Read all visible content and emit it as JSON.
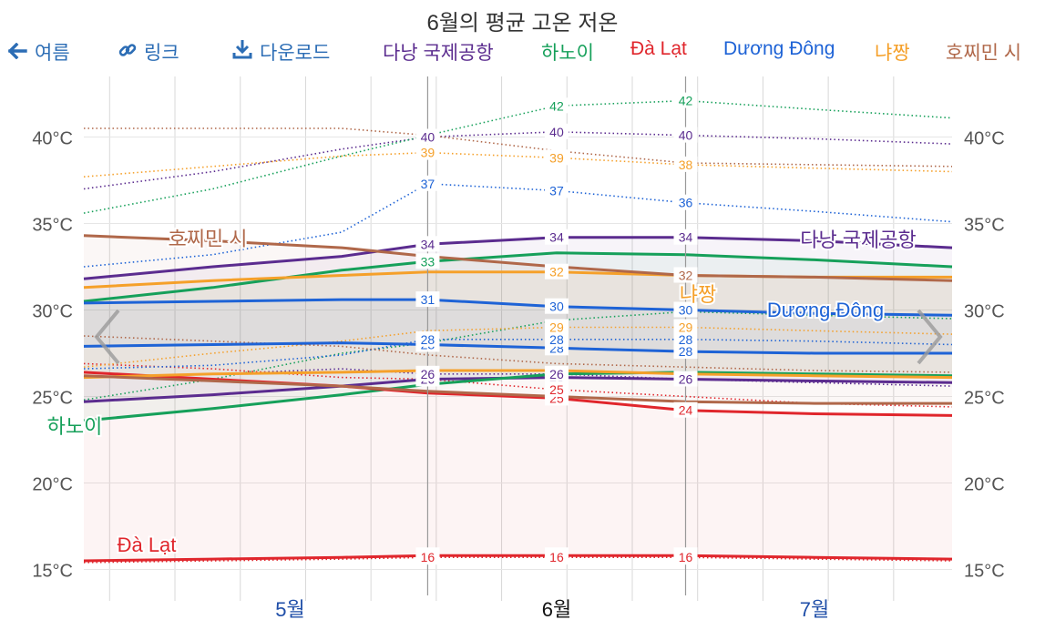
{
  "title": "6월의 평균 고온 저온",
  "toolbar": {
    "back_label": "여름",
    "link_label": "링크",
    "download_label": "다운로드"
  },
  "colors": {
    "danang": "#5b2c8f",
    "hanoi": "#16a05a",
    "dalat": "#e0262c",
    "duongdong": "#1e63d6",
    "nhatrang": "#f5a02a",
    "hcmc": "#b0684a",
    "toolbar": "#2c6db5"
  },
  "nav": {
    "prev_icon": "chevron-left-icon",
    "next_icon": "chevron-right-icon"
  },
  "chart_data": {
    "type": "line",
    "title": "6월의 평균 고온 저온",
    "y_unit": "°C",
    "ylim": [
      13.5,
      43.5
    ],
    "y_ticks": [
      15,
      20,
      25,
      30,
      35,
      40
    ],
    "y_tick_labels": [
      "15°C",
      "20°C",
      "25°C",
      "30°C",
      "35°C",
      "40°C"
    ],
    "x_range": [
      "04-22",
      "07-31"
    ],
    "month_labels": [
      {
        "label": "5월",
        "date": "05-16"
      },
      {
        "label": "6월",
        "date": "06-16"
      },
      {
        "label": "7월",
        "date": "07-16"
      }
    ],
    "current_month": "6월",
    "marker_dates": [
      "06-01",
      "06-16",
      "07-01"
    ],
    "grid": true,
    "legend": "top",
    "series": [
      {
        "name": "다낭 국제공항",
        "color_key": "danang",
        "end_label": "다낭 국제공항",
        "high": [
          [
            0,
            31.8
          ],
          [
            15,
            32.5
          ],
          [
            30,
            33.1
          ],
          [
            40,
            33.8
          ],
          [
            55,
            34.2
          ],
          [
            70,
            34.2
          ],
          [
            85,
            34.0
          ],
          [
            101,
            33.6
          ]
        ],
        "low": [
          [
            0,
            24.7
          ],
          [
            15,
            25.1
          ],
          [
            30,
            25.6
          ],
          [
            40,
            26.0
          ],
          [
            55,
            26.1
          ],
          [
            70,
            26.0
          ],
          [
            85,
            25.9
          ],
          [
            101,
            25.8
          ]
        ],
        "max": [
          [
            0,
            37.0
          ],
          [
            15,
            38.0
          ],
          [
            30,
            39.3
          ],
          [
            40,
            40.0
          ],
          [
            55,
            40.3
          ],
          [
            70,
            40.1
          ],
          [
            85,
            39.9
          ],
          [
            101,
            39.6
          ]
        ],
        "min": [
          [
            0,
            26.1
          ],
          [
            15,
            26.3
          ],
          [
            30,
            26.6
          ],
          [
            40,
            26.3
          ],
          [
            55,
            26.3
          ],
          [
            70,
            26.0
          ],
          [
            85,
            25.8
          ],
          [
            101,
            25.6
          ]
        ],
        "point_labels": [
          [
            "40",
            "34"
          ],
          [
            "26",
            "26"
          ],
          [
            "40",
            "40"
          ],
          [
            "40",
            "26"
          ],
          [
            "55",
            "34"
          ],
          [
            "55",
            "26"
          ],
          [
            "55",
            "40"
          ],
          [
            "70",
            "34"
          ],
          [
            "70",
            "26"
          ],
          [
            "70",
            "40"
          ]
        ]
      },
      {
        "name": "하노이",
        "color_key": "hanoi",
        "start_label": "하노이",
        "high": [
          [
            0,
            30.5
          ],
          [
            15,
            31.3
          ],
          [
            30,
            32.3
          ],
          [
            40,
            32.8
          ],
          [
            55,
            33.3
          ],
          [
            70,
            33.2
          ],
          [
            85,
            32.9
          ],
          [
            101,
            32.5
          ]
        ],
        "low": [
          [
            0,
            23.6
          ],
          [
            15,
            24.3
          ],
          [
            30,
            25.1
          ],
          [
            40,
            25.7
          ],
          [
            55,
            26.3
          ],
          [
            70,
            26.4
          ],
          [
            85,
            26.3
          ],
          [
            101,
            26.2
          ]
        ],
        "max": [
          [
            0,
            35.6
          ],
          [
            15,
            37.0
          ],
          [
            30,
            38.9
          ],
          [
            40,
            40.1
          ],
          [
            55,
            41.8
          ],
          [
            70,
            42.1
          ],
          [
            85,
            41.6
          ],
          [
            101,
            41.1
          ]
        ],
        "min": [
          [
            0,
            24.8
          ],
          [
            15,
            26.0
          ],
          [
            30,
            27.5
          ],
          [
            40,
            28.1
          ],
          [
            55,
            29.4
          ],
          [
            70,
            29.9
          ],
          [
            85,
            29.7
          ],
          [
            101,
            29.5
          ]
        ],
        "point_labels": [
          [
            "40",
            "33"
          ],
          [
            "55",
            "42"
          ],
          [
            "70",
            "42"
          ]
        ]
      },
      {
        "name": "Đà Lạt",
        "color_key": "dalat",
        "start_label": "Đà Lạt",
        "high": [
          [
            0,
            26.4
          ],
          [
            15,
            26.0
          ],
          [
            30,
            25.6
          ],
          [
            40,
            25.2
          ],
          [
            55,
            24.9
          ],
          [
            70,
            24.2
          ],
          [
            85,
            24.0
          ],
          [
            101,
            23.9
          ]
        ],
        "low": [
          [
            0,
            15.5
          ],
          [
            15,
            15.6
          ],
          [
            30,
            15.7
          ],
          [
            40,
            15.8
          ],
          [
            55,
            15.8
          ],
          [
            70,
            15.8
          ],
          [
            85,
            15.7
          ],
          [
            101,
            15.6
          ]
        ],
        "max": [
          [
            0,
            26.9
          ],
          [
            15,
            26.6
          ],
          [
            30,
            26.1
          ],
          [
            40,
            26.0
          ],
          [
            55,
            25.4
          ],
          [
            70,
            25.0
          ],
          [
            85,
            24.6
          ],
          [
            101,
            24.4
          ]
        ],
        "min": [
          [
            0,
            15.4
          ],
          [
            15,
            15.5
          ],
          [
            30,
            15.6
          ],
          [
            40,
            15.7
          ],
          [
            55,
            15.7
          ],
          [
            70,
            15.7
          ],
          [
            85,
            15.6
          ],
          [
            101,
            15.5
          ]
        ],
        "point_labels": [
          [
            "40",
            "16"
          ],
          [
            "55",
            "25"
          ],
          [
            "55",
            "16"
          ],
          [
            "70",
            "24"
          ],
          [
            "70",
            "16"
          ]
        ]
      },
      {
        "name": "Dương Đông",
        "color_key": "duongdong",
        "end_label": "Dương Đông",
        "high": [
          [
            0,
            30.4
          ],
          [
            15,
            30.5
          ],
          [
            30,
            30.6
          ],
          [
            40,
            30.6
          ],
          [
            55,
            30.2
          ],
          [
            70,
            30.0
          ],
          [
            85,
            29.8
          ],
          [
            101,
            29.7
          ]
        ],
        "low": [
          [
            0,
            27.9
          ],
          [
            15,
            28.0
          ],
          [
            30,
            28.1
          ],
          [
            40,
            28.0
          ],
          [
            55,
            27.8
          ],
          [
            70,
            27.6
          ],
          [
            85,
            27.5
          ],
          [
            101,
            27.5
          ]
        ],
        "max": [
          [
            0,
            32.5
          ],
          [
            15,
            33.2
          ],
          [
            30,
            34.5
          ],
          [
            40,
            37.3
          ],
          [
            55,
            36.9
          ],
          [
            70,
            36.2
          ],
          [
            85,
            35.7
          ],
          [
            101,
            35.1
          ]
        ],
        "min": [
          [
            0,
            26.6
          ],
          [
            15,
            26.8
          ],
          [
            30,
            27.4
          ],
          [
            40,
            28.3
          ],
          [
            55,
            28.3
          ],
          [
            70,
            28.3
          ],
          [
            85,
            28.2
          ],
          [
            101,
            28.0
          ]
        ],
        "point_labels": [
          [
            "40",
            "37"
          ],
          [
            "40",
            "31"
          ],
          [
            "40",
            "28"
          ],
          [
            "55",
            "37"
          ],
          [
            "55",
            "30"
          ],
          [
            "55",
            "28"
          ],
          [
            "70",
            "36"
          ],
          [
            "70",
            "30"
          ],
          [
            "70",
            "28"
          ]
        ]
      },
      {
        "name": "냐짱",
        "color_key": "nhatrang",
        "end_label": "냐짱",
        "high": [
          [
            0,
            31.3
          ],
          [
            15,
            31.7
          ],
          [
            30,
            32.0
          ],
          [
            40,
            32.2
          ],
          [
            55,
            32.2
          ],
          [
            70,
            32.0
          ],
          [
            85,
            31.9
          ],
          [
            101,
            31.9
          ]
        ],
        "low": [
          [
            0,
            26.1
          ],
          [
            15,
            26.3
          ],
          [
            30,
            26.4
          ],
          [
            40,
            26.5
          ],
          [
            55,
            26.5
          ],
          [
            70,
            26.3
          ],
          [
            85,
            26.2
          ],
          [
            101,
            26.1
          ]
        ],
        "max": [
          [
            0,
            37.7
          ],
          [
            15,
            38.3
          ],
          [
            30,
            38.9
          ],
          [
            40,
            39.1
          ],
          [
            55,
            38.8
          ],
          [
            70,
            38.4
          ],
          [
            85,
            38.2
          ],
          [
            101,
            38.0
          ]
        ],
        "min": [
          [
            0,
            26.7
          ],
          [
            15,
            27.5
          ],
          [
            30,
            28.2
          ],
          [
            40,
            28.8
          ],
          [
            55,
            29.0
          ],
          [
            70,
            29.0
          ],
          [
            85,
            28.8
          ],
          [
            101,
            28.6
          ]
        ],
        "point_labels": [
          [
            "40",
            "39"
          ],
          [
            "55",
            "39"
          ],
          [
            "55",
            "32"
          ],
          [
            "55",
            "29"
          ],
          [
            "70",
            "38"
          ],
          [
            "70",
            "29"
          ]
        ]
      },
      {
        "name": "호찌민 시",
        "color_key": "hcmc",
        "start_label": "호찌민 시",
        "high": [
          [
            0,
            34.3
          ],
          [
            15,
            34.0
          ],
          [
            30,
            33.6
          ],
          [
            40,
            33.1
          ],
          [
            55,
            32.5
          ],
          [
            70,
            32.0
          ],
          [
            85,
            31.9
          ],
          [
            101,
            31.7
          ]
        ],
        "low": [
          [
            0,
            26.2
          ],
          [
            15,
            25.9
          ],
          [
            30,
            25.6
          ],
          [
            40,
            25.3
          ],
          [
            55,
            25.0
          ],
          [
            70,
            24.7
          ],
          [
            85,
            24.6
          ],
          [
            101,
            24.6
          ]
        ],
        "max": [
          [
            0,
            40.5
          ],
          [
            15,
            40.5
          ],
          [
            30,
            40.5
          ],
          [
            40,
            40.1
          ],
          [
            55,
            39.2
          ],
          [
            70,
            38.5
          ],
          [
            85,
            38.4
          ],
          [
            101,
            38.3
          ]
        ],
        "min": [
          [
            0,
            28.5
          ],
          [
            15,
            28.2
          ],
          [
            30,
            27.9
          ],
          [
            40,
            27.4
          ],
          [
            55,
            26.9
          ],
          [
            70,
            26.7
          ],
          [
            85,
            26.5
          ],
          [
            101,
            26.4
          ]
        ],
        "point_labels": [
          [
            "70",
            "32"
          ]
        ]
      }
    ]
  }
}
